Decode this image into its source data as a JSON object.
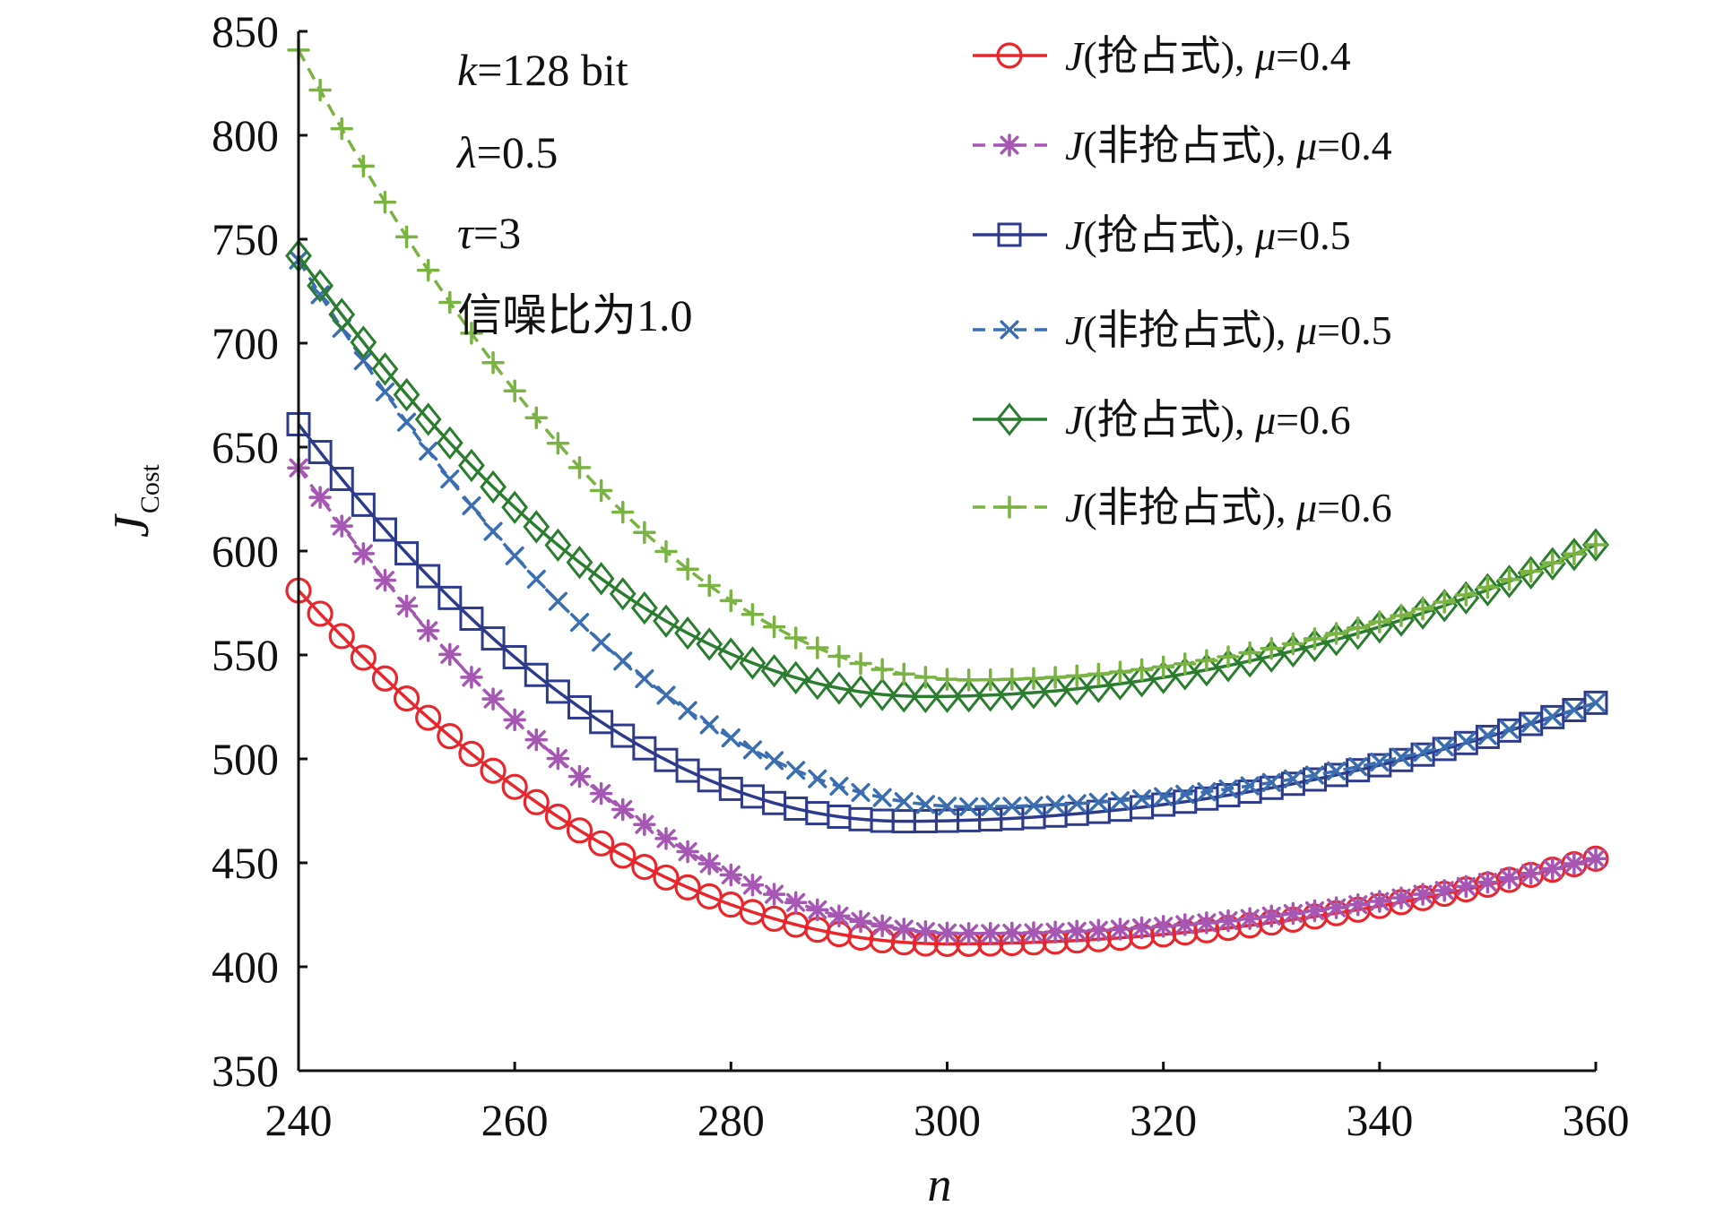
{
  "chart_data": {
    "type": "line",
    "title": "",
    "xlabel": "n",
    "ylabel": {
      "main": "J",
      "sub": "Cost"
    },
    "xlim": [
      240,
      360
    ],
    "ylim": [
      350,
      850
    ],
    "xticks": [
      240,
      260,
      280,
      300,
      320,
      340,
      360
    ],
    "yticks": [
      350,
      400,
      450,
      500,
      550,
      600,
      650,
      700,
      750,
      800,
      850
    ],
    "grid": false,
    "legend_position": "top-right",
    "annotations": [
      {
        "var": "k",
        "rest": "=128 bit"
      },
      {
        "var": "λ",
        "rest": "=0.5"
      },
      {
        "var": "τ",
        "rest": "=3"
      },
      {
        "var": "",
        "rest": "信噪比为1.0"
      }
    ],
    "series": [
      {
        "name": "J(抢占式), μ=0.4",
        "legend": {
          "j": "J",
          "mid": "(抢占式), ",
          "mu": "μ",
          "val": "=0.4"
        },
        "color": "#e8262b",
        "dashed": false,
        "marker": "circle",
        "n_min": 300,
        "j_min": 411,
        "j_start": 581,
        "j_end": 452
      },
      {
        "name": "J(非抢占式), μ=0.4",
        "legend": {
          "j": "J",
          "mid": "(非抢占式), ",
          "mu": "μ",
          "val": "=0.4"
        },
        "color": "#a557b3",
        "dashed": true,
        "marker": "asterisk",
        "n_min": 302,
        "j_min": 416,
        "j_start": 640,
        "j_end": 452
      },
      {
        "name": "J(抢占式), μ=0.5",
        "legend": {
          "j": "J",
          "mid": "(抢占式), ",
          "mu": "μ",
          "val": "=0.5"
        },
        "color": "#2e3a8c",
        "dashed": false,
        "marker": "square",
        "n_min": 296,
        "j_min": 470,
        "j_start": 661,
        "j_end": 527
      },
      {
        "name": "J(非抢占式), μ=0.5",
        "legend": {
          "j": "J",
          "mid": "(非抢占式), ",
          "mu": "μ",
          "val": "=0.5"
        },
        "color": "#3a6eb0",
        "dashed": true,
        "marker": "x",
        "n_min": 302,
        "j_min": 477,
        "j_start": 740,
        "j_end": 527
      },
      {
        "name": "J(抢占式), μ=0.6",
        "legend": {
          "j": "J",
          "mid": "(抢占式), ",
          "mu": "μ",
          "val": "=0.6"
        },
        "color": "#2a7d2e",
        "dashed": false,
        "marker": "diamond",
        "n_min": 298,
        "j_min": 530,
        "j_start": 742,
        "j_end": 603
      },
      {
        "name": "J(非抢占式), μ=0.6",
        "legend": {
          "j": "J",
          "mid": "(非抢占式), ",
          "mu": "μ",
          "val": "=0.6"
        },
        "color": "#7ab342",
        "dashed": true,
        "marker": "plus",
        "n_min": 302,
        "j_min": 538,
        "j_start": 841,
        "j_end": 603
      }
    ]
  }
}
